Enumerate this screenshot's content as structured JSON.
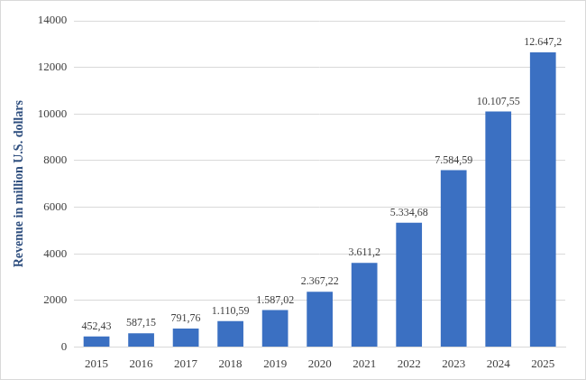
{
  "chart_data": {
    "type": "bar",
    "y_label": "Revenue in million U.S. dollars",
    "categories": [
      "2015",
      "2016",
      "2017",
      "2018",
      "2019",
      "2020",
      "2021",
      "2022",
      "2023",
      "2024",
      "2025"
    ],
    "values": [
      452.43,
      587.15,
      791.76,
      1110.59,
      1587.02,
      2367.22,
      3611.2,
      5334.68,
      7584.59,
      10107.55,
      12647.2
    ],
    "value_labels": [
      "452,43",
      "587,15",
      "791,76",
      "1.110,59",
      "1.587,02",
      "2.367,22",
      "3.611,2",
      "5.334,68",
      "7.584,59",
      "10.107,55",
      "12.647,2"
    ],
    "color": "#3b70c2",
    "ylim": [
      0,
      14000
    ],
    "yticks": [
      0,
      2000,
      4000,
      6000,
      8000,
      10000,
      12000,
      14000
    ],
    "grid": true,
    "data_labels": true
  }
}
